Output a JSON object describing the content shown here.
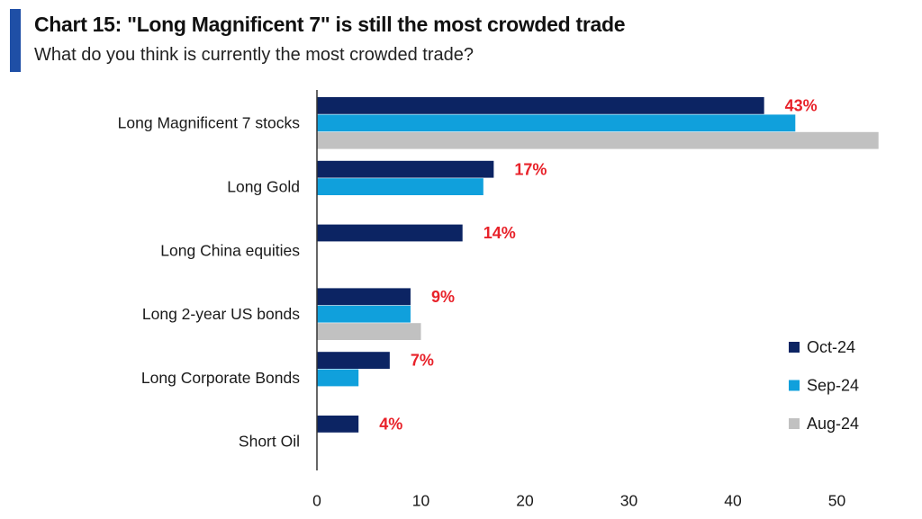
{
  "header": {
    "title": "Chart 15: \"Long Magnificent 7\" is still the most crowded trade",
    "subtitle": "What do you think is currently the most crowded trade?"
  },
  "colors": {
    "accent": "#1f4fa6",
    "oct": "#0c2463",
    "sep": "#10a0dc",
    "aug": "#c1c1c1",
    "label": "#e8222a",
    "axis": "#333333"
  },
  "chart_data": {
    "type": "bar",
    "orientation": "horizontal",
    "categories": [
      "Long Magnificent 7 stocks",
      "Long Gold",
      "Long China equities",
      "Long 2-year US bonds",
      "Long Corporate Bonds",
      "Short Oil"
    ],
    "series": [
      {
        "name": "Oct-24",
        "values": [
          43,
          17,
          14,
          9,
          7,
          4
        ]
      },
      {
        "name": "Sep-24",
        "values": [
          46,
          16,
          null,
          9,
          4,
          null
        ]
      },
      {
        "name": "Aug-24",
        "values": [
          54,
          null,
          null,
          10,
          null,
          null
        ]
      }
    ],
    "data_labels": [
      "43%",
      "17%",
      "14%",
      "9%",
      "7%",
      "4%"
    ],
    "xlim": [
      0,
      54
    ],
    "x_ticks": [
      0,
      10,
      20,
      30,
      40,
      50
    ],
    "legend_position": "right",
    "grid": false
  }
}
